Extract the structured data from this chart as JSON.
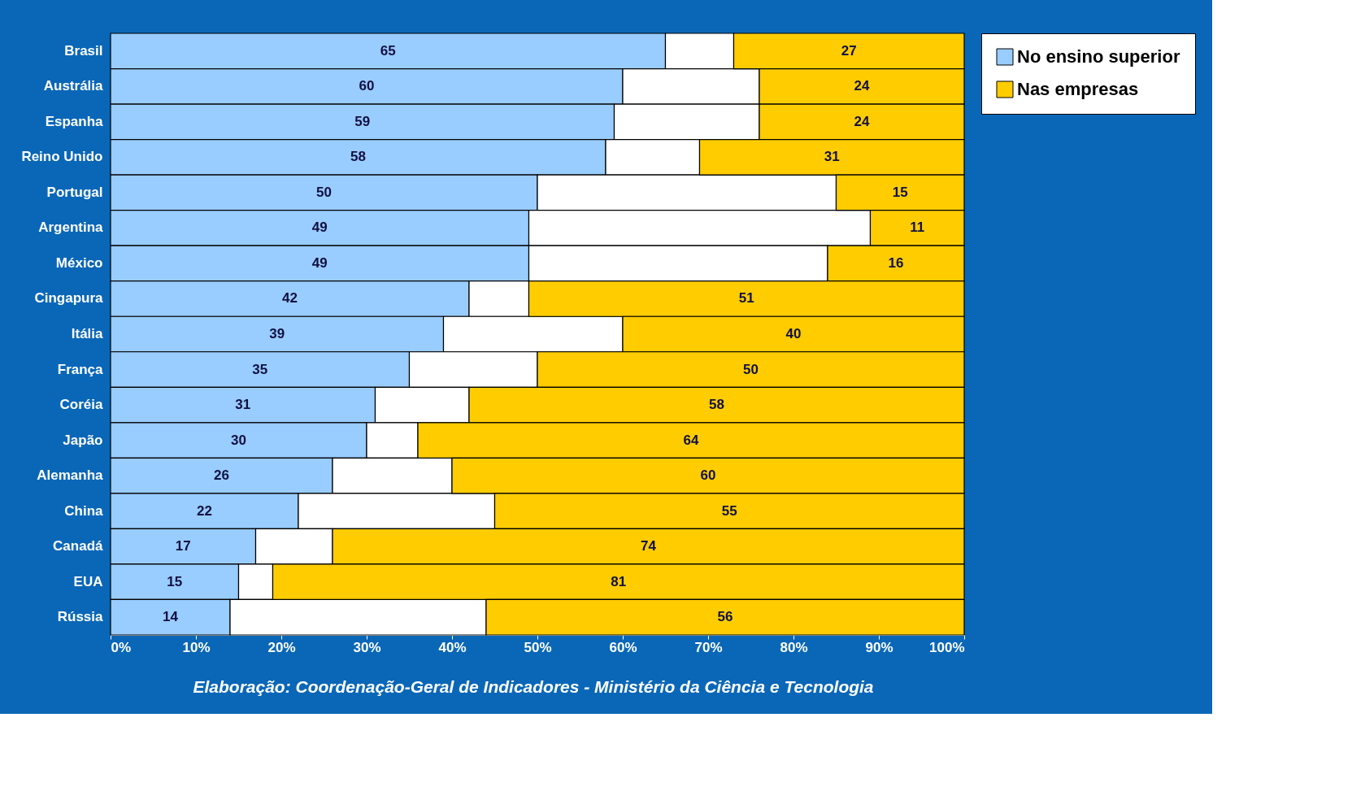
{
  "chart_data": {
    "type": "bar",
    "orientation": "horizontal",
    "stacked": true,
    "categories": [
      "Brasil",
      "Austrália",
      "Espanha",
      "Reino Unido",
      "Portugal",
      "Argentina",
      "México",
      "Cingapura",
      "Itália",
      "França",
      "Coréia",
      "Japão",
      "Alemanha",
      "China",
      "Canadá",
      "EUA",
      "Rússia"
    ],
    "series": [
      {
        "name": "No ensino superior",
        "color": "#99ccff",
        "values": [
          65,
          60,
          59,
          58,
          50,
          49,
          49,
          42,
          39,
          35,
          31,
          30,
          26,
          22,
          17,
          15,
          14
        ],
        "value_labels": [
          "65",
          "60",
          "59",
          "58",
          "50",
          "49",
          "49",
          "42",
          "39",
          "35",
          "31",
          "30",
          "26",
          "22",
          "17",
          "15",
          "14"
        ]
      },
      {
        "color": "#ffffff",
        "values": [
          8,
          16,
          17,
          11,
          35,
          40,
          35,
          7,
          21,
          15,
          11,
          6,
          14,
          23,
          9,
          4,
          30
        ]
      },
      {
        "name": "Nas empresas",
        "color": "#ffcc00",
        "values": [
          27,
          24,
          24,
          31,
          15,
          11,
          16,
          51,
          40,
          50,
          58,
          64,
          60,
          55,
          74,
          81,
          56
        ],
        "value_labels": [
          "27",
          "24",
          "24",
          "31",
          "15",
          "11",
          "16",
          "51",
          "40",
          "50",
          "58",
          "64",
          "60",
          "55",
          "74",
          "81",
          "56"
        ]
      }
    ],
    "xlim": [
      0,
      100
    ],
    "xticks": [
      {
        "value": 0,
        "label": "0%"
      },
      {
        "value": 10,
        "label": "10%"
      },
      {
        "value": 20,
        "label": "20%"
      },
      {
        "value": 30,
        "label": "30%"
      },
      {
        "value": 40,
        "label": "40%"
      },
      {
        "value": 50,
        "label": "50%"
      },
      {
        "value": 60,
        "label": "60%"
      },
      {
        "value": 70,
        "label": "70%"
      },
      {
        "value": 80,
        "label": "80%"
      },
      {
        "value": 90,
        "label": "90%"
      },
      {
        "value": 100,
        "label": "100%"
      }
    ],
    "grid": false,
    "legend": "right",
    "annotations": [
      "Elaboração: Coordenação-Geral de Indicadores - Ministério da Ciência e Tecnologia"
    ]
  }
}
